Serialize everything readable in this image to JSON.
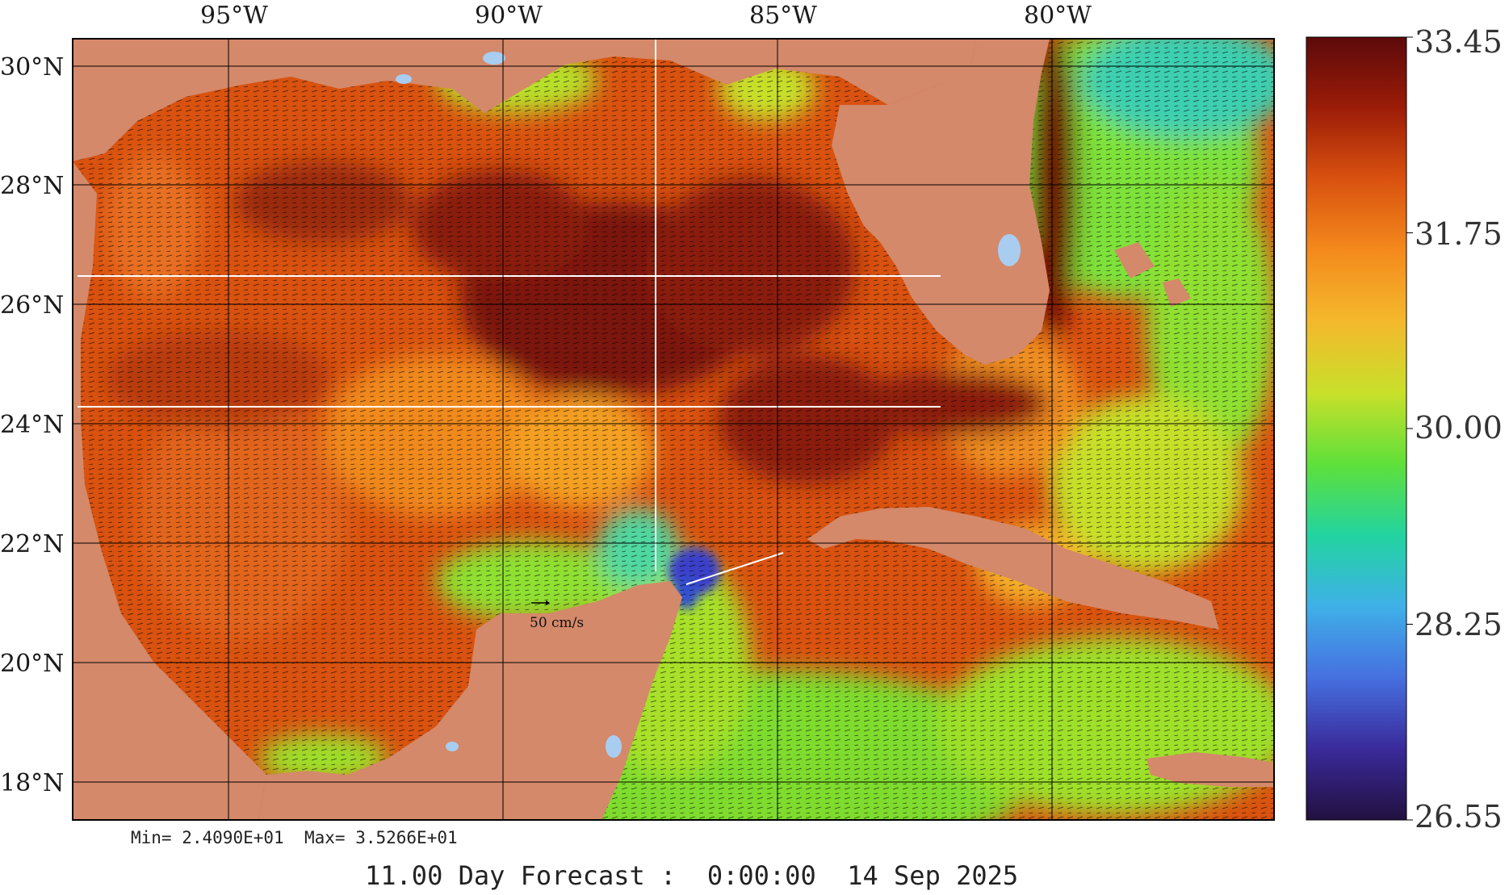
{
  "title": "",
  "lon_ticks": [
    "95°W",
    "90°W",
    "85°W",
    "80°W"
  ],
  "lat_ticks": [
    "30°N",
    "28°N",
    "26°N",
    "24°N",
    "22°N",
    "20°N",
    "18°N"
  ],
  "stats": {
    "min_label": "Min=",
    "min_value": "2.4090E+01",
    "max_label": "Max=",
    "max_value": "3.5266E+01"
  },
  "reference_vector": "50 cm/s",
  "forecast": "11.00 Day Forecast :  0:00:00  14 Sep 2025",
  "colorbar": {
    "labels": [
      "33.45",
      "31.75",
      "30.00",
      "28.25",
      "26.55"
    ],
    "stops": [
      "#5c0a0a",
      "#9c1c08",
      "#d9520f",
      "#f48a1c",
      "#f4b92c",
      "#c8e02a",
      "#5fe03a",
      "#22d4a0",
      "#3fb0e8",
      "#4670e0",
      "#3a2a9a",
      "#221040"
    ]
  },
  "colors": {
    "land": "#d4896a",
    "water_body": "#a8cdf0",
    "grid": "#000000",
    "frame": "#000000"
  },
  "chart_data": {
    "type": "heatmap",
    "title": "",
    "xlabel": "",
    "ylabel": "",
    "x_ticks": [
      "95°W",
      "90°W",
      "85°W",
      "80°W"
    ],
    "y_ticks": [
      "30°N",
      "28°N",
      "26°N",
      "24°N",
      "22°N",
      "20°N",
      "18°N"
    ],
    "color_range": [
      26.55,
      33.45
    ],
    "colorbar_ticks": [
      33.45,
      31.75,
      30.0,
      28.25,
      26.55
    ],
    "min": 24.09,
    "max": 35.266,
    "overlay": "current vectors (50 cm/s reference)"
  }
}
